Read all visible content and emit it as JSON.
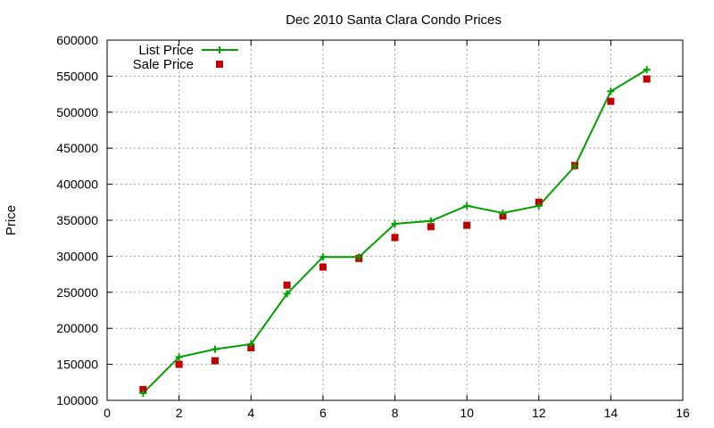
{
  "chart_data": {
    "type": "line",
    "title": "Dec 2010 Santa Clara Condo Prices",
    "xlabel": "",
    "ylabel": "Price",
    "xlim": [
      0,
      16
    ],
    "ylim": [
      100000,
      600000
    ],
    "x_ticks": [
      0,
      2,
      4,
      6,
      8,
      10,
      12,
      14,
      16
    ],
    "y_ticks": [
      100000,
      150000,
      200000,
      250000,
      300000,
      350000,
      400000,
      450000,
      500000,
      550000,
      600000
    ],
    "grid": true,
    "legend_position": "top-left",
    "series": [
      {
        "name": "List Price",
        "style": "line+cross",
        "color": "#00a000",
        "x": [
          1,
          2,
          3,
          4,
          5,
          6,
          7,
          8,
          9,
          10,
          11,
          12,
          13,
          14,
          15
        ],
        "values": [
          110000,
          160000,
          171000,
          178000,
          248000,
          299000,
          299000,
          345000,
          349000,
          370000,
          360000,
          370000,
          425000,
          529000,
          559000
        ]
      },
      {
        "name": "Sale Price",
        "style": "square",
        "color": "#c00000",
        "x": [
          1,
          2,
          3,
          4,
          5,
          6,
          7,
          8,
          9,
          10,
          11,
          12,
          13,
          14,
          15
        ],
        "values": [
          115000,
          150000,
          155000,
          173000,
          260000,
          285000,
          297000,
          326000,
          341000,
          343000,
          356000,
          375000,
          426000,
          515000,
          546000
        ]
      }
    ]
  }
}
